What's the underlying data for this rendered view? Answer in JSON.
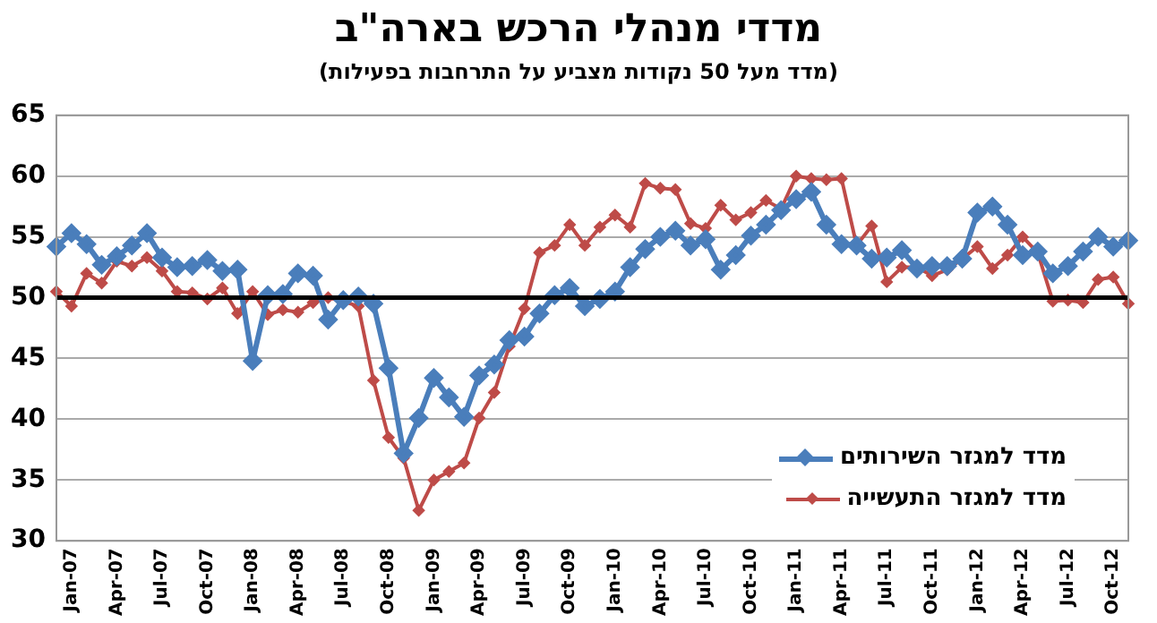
{
  "chart_data": {
    "type": "line",
    "title": "מדדי מנהלי הרכש בארה\"ב",
    "subtitle": "(מדד מעל 50 נקודות מצביע על התרחבות בפעילות)",
    "categories": [
      null,
      "Jan-07",
      null,
      null,
      "Apr-07",
      null,
      null,
      "Jul-07",
      null,
      null,
      "Oct-07",
      null,
      null,
      "Jan-08",
      null,
      null,
      "Apr-08",
      null,
      null,
      "Jul-08",
      null,
      null,
      "Oct-08",
      null,
      null,
      "Jan-09",
      null,
      null,
      "Apr-09",
      null,
      null,
      "Jul-09",
      null,
      null,
      "Oct-09",
      null,
      null,
      "Jan-10",
      null,
      null,
      "Apr-10",
      null,
      null,
      "Jul-10",
      null,
      null,
      "Oct-10",
      null,
      null,
      "Jan-11",
      null,
      null,
      "Apr-11",
      null,
      null,
      "Jul-11",
      null,
      null,
      "Oct-11",
      null,
      null,
      "Jan-12",
      null,
      null,
      "Apr-12",
      null,
      null,
      "Jul-12",
      null,
      null,
      "Oct-12",
      null
    ],
    "series": [
      {
        "name": "מדד למגזר השירותים",
        "color": "#4a7ebb",
        "values": [
          54.2,
          55.3,
          54.4,
          52.7,
          53.4,
          54.3,
          55.3,
          53.3,
          52.5,
          52.6,
          53.1,
          52.2,
          52.3,
          44.8,
          50.2,
          50.3,
          52.0,
          51.8,
          48.2,
          49.8,
          50.1,
          49.5,
          44.2,
          37.2,
          40.1,
          43.4,
          41.8,
          40.2,
          43.6,
          44.5,
          46.5,
          46.8,
          48.7,
          50.2,
          50.8,
          49.3,
          49.9,
          50.5,
          52.5,
          54.0,
          55.0,
          55.5,
          54.3,
          54.8,
          52.3,
          53.5,
          55.1,
          56.0,
          57.2,
          58.1,
          58.7,
          56.0,
          54.4,
          54.3,
          53.2,
          53.3,
          53.9,
          52.4,
          52.6,
          52.6,
          53.2,
          57.0,
          57.5,
          56.0,
          53.5,
          53.8,
          52.0,
          52.6,
          53.8,
          55.0,
          54.2,
          54.7
        ]
      },
      {
        "name": "מדד למגזר התעשייה",
        "color": "#be4b48",
        "values": [
          50.5,
          49.3,
          52.0,
          51.2,
          53.0,
          52.6,
          53.3,
          52.2,
          50.5,
          50.4,
          49.9,
          50.8,
          48.7,
          50.5,
          48.6,
          49.0,
          48.8,
          49.6,
          50.0,
          49.7,
          49.3,
          43.2,
          38.5,
          36.8,
          32.5,
          35.0,
          35.7,
          36.4,
          40.1,
          42.2,
          46.0,
          49.1,
          53.7,
          54.3,
          56.0,
          54.3,
          55.8,
          56.8,
          55.8,
          59.4,
          59.0,
          58.9,
          56.1,
          55.7,
          57.6,
          56.4,
          57.0,
          58.0,
          57.3,
          60.0,
          59.8,
          59.7,
          59.8,
          54.3,
          55.9,
          51.3,
          52.5,
          52.5,
          51.8,
          52.3,
          53.2,
          54.2,
          52.4,
          53.5,
          55.0,
          53.7,
          49.7,
          49.8,
          49.6,
          51.5,
          51.7,
          49.5
        ]
      }
    ],
    "ylim": [
      30,
      65
    ],
    "yticks": [
      30,
      35,
      40,
      45,
      50,
      55,
      60,
      65
    ],
    "ref_lines": [
      {
        "axis": "y",
        "value": 50,
        "color": "#000000"
      }
    ],
    "grid": "y",
    "legend": "bottom right",
    "marker": "diamond",
    "line_style": "solid"
  }
}
